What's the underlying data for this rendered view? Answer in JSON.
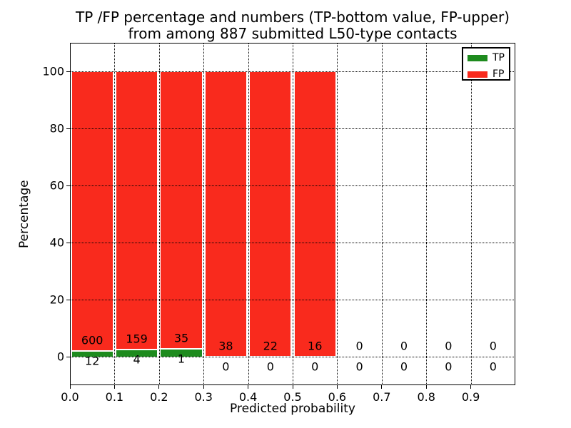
{
  "chart_data": {
    "type": "bar",
    "stacked": true,
    "title_lines": [
      "TP /FP percentage and numbers (TP-bottom value, FP-upper)",
      "from among 887 submitted L50-type contacts"
    ],
    "xlabel": "Predicted probability",
    "ylabel": "Percentage",
    "xlim": [
      0.0,
      1.0
    ],
    "ylim": [
      -10,
      110
    ],
    "xticks": [
      "0.0",
      "0.1",
      "0.2",
      "0.3",
      "0.4",
      "0.5",
      "0.6",
      "0.7",
      "0.8",
      "0.9"
    ],
    "yticks": [
      "0",
      "20",
      "40",
      "60",
      "80",
      "100"
    ],
    "grid": {
      "style": "dotted",
      "color": "#000000",
      "on": true
    },
    "bin_width": 0.1,
    "categories": [
      "0.0-0.1",
      "0.1-0.2",
      "0.2-0.3",
      "0.3-0.4",
      "0.4-0.5",
      "0.5-0.6",
      "0.6-0.7",
      "0.7-0.8",
      "0.8-0.9",
      "0.9-1.0"
    ],
    "series": [
      {
        "name": "TP",
        "color": "#1e8b1e",
        "counts": [
          12,
          4,
          1,
          0,
          0,
          0,
          0,
          0,
          0,
          0
        ],
        "pct": [
          1.96,
          2.45,
          2.78,
          0,
          0,
          0,
          0,
          0,
          0,
          0
        ]
      },
      {
        "name": "FP",
        "color": "#f92a1d",
        "counts": [
          600,
          159,
          35,
          38,
          22,
          16,
          0,
          0,
          0,
          0
        ],
        "pct": [
          98.04,
          97.55,
          97.22,
          100,
          100,
          100,
          0,
          0,
          0,
          0
        ]
      }
    ],
    "total_contacts": "887",
    "legend": {
      "position": "upper-right",
      "entries": [
        {
          "label": "TP",
          "color": "#1e8b1e"
        },
        {
          "label": "FP",
          "color": "#f92a1d"
        }
      ]
    }
  }
}
